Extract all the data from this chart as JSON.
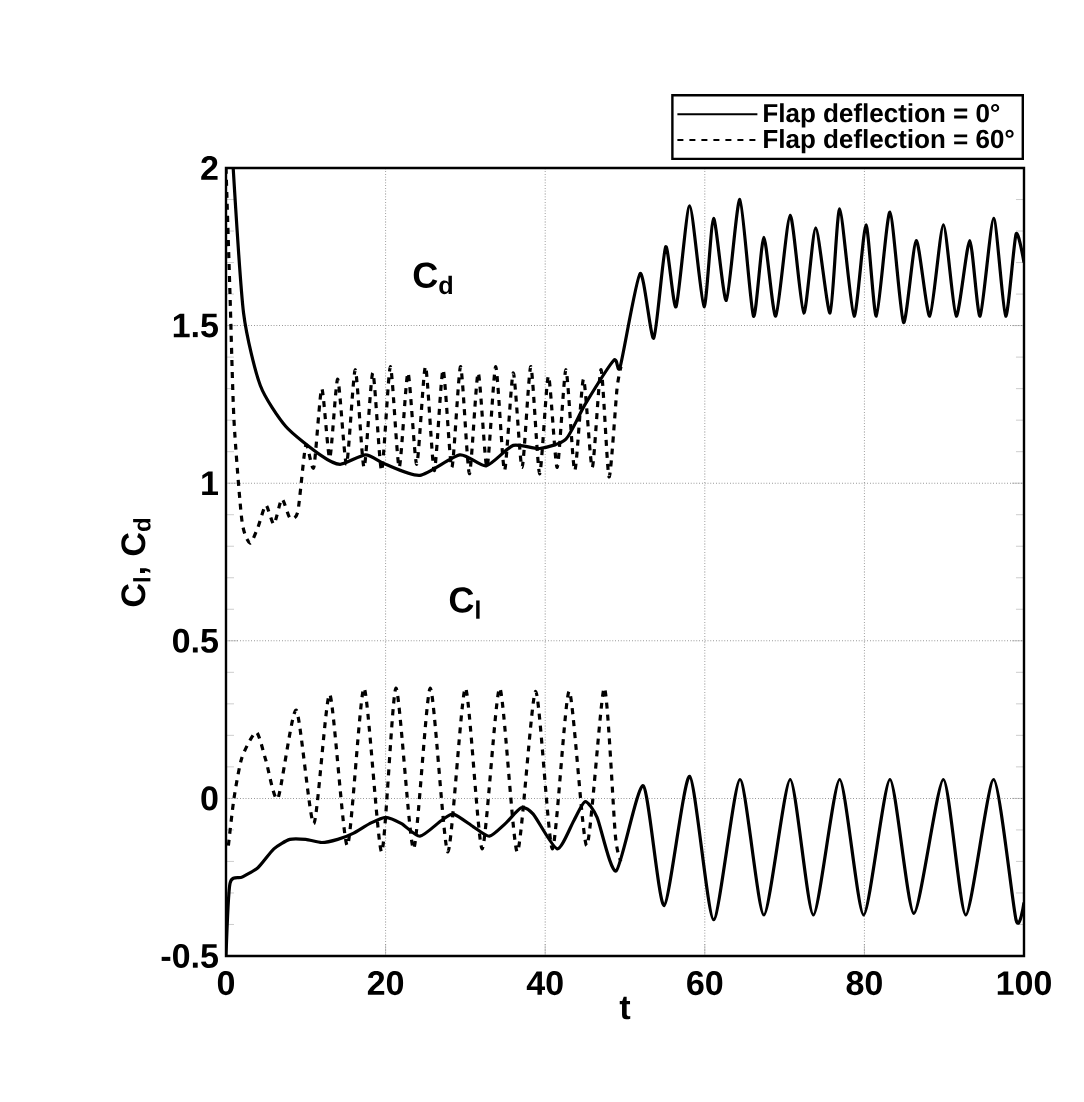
{
  "chart_data": {
    "type": "line",
    "xlabel": "t",
    "ylabel": "C$_{l}$, C$_{d}$",
    "xlim": [
      0,
      100
    ],
    "ylim": [
      -0.5,
      2
    ],
    "xticks": [
      0,
      20,
      40,
      60,
      80,
      100
    ],
    "yticks": [
      -0.5,
      0,
      0.5,
      1,
      1.5,
      2
    ],
    "grid": true,
    "legend": "top right",
    "marker": "none",
    "annotations": [
      "C$_{d}$",
      "C$_{l}$"
    ],
    "series": [
      {
        "name": "Flap deflection = 0°",
        "color": "#000000",
        "line_style": "solid",
        "x": [
          0.9,
          2.2,
          4.3,
          7.5,
          11.8,
          14.3,
          17.5,
          20,
          24.3,
          29.3,
          32.6,
          36,
          39.3,
          42.6,
          45,
          48.6,
          49.4,
          51.9,
          53.6,
          55.1,
          56.4,
          58.1,
          59.9,
          61.1,
          62.7,
          64.4,
          66.1,
          67.4,
          68.9,
          70.7,
          72.4,
          73.9,
          75.7,
          76.9,
          78.7,
          80.2,
          81.5,
          83.2,
          84.9,
          86.5,
          88.2,
          89.9,
          91.5,
          93.2,
          94.5,
          96.2,
          97.7,
          99,
          100
        ],
        "values": [
          2,
          1.54,
          1.31,
          1.18,
          1.09,
          1.06,
          1.09,
          1.06,
          1.025,
          1.09,
          1.055,
          1.12,
          1.11,
          1.14,
          1.25,
          1.39,
          1.37,
          1.665,
          1.46,
          1.75,
          1.56,
          1.88,
          1.56,
          1.84,
          1.58,
          1.9,
          1.53,
          1.78,
          1.53,
          1.85,
          1.54,
          1.81,
          1.54,
          1.87,
          1.53,
          1.82,
          1.53,
          1.86,
          1.51,
          1.77,
          1.53,
          1.82,
          1.53,
          1.77,
          1.53,
          1.84,
          1.53,
          1.79,
          1.7
        ]
      },
      {
        "name": "Flap deflection = 60°",
        "color": "#000000",
        "line_style": "dashed",
        "x": [
          0,
          0.5,
          1,
          2,
          3,
          4,
          5,
          6,
          7,
          8,
          9,
          10,
          11,
          12,
          13,
          14,
          15.1,
          16.2,
          17.3,
          18.4,
          19.5,
          20.6,
          21.7,
          22.8,
          23.9,
          25,
          26.1,
          27.2,
          28.3,
          29.4,
          30.5,
          31.6,
          32.7,
          33.8,
          34.9,
          36,
          37.1,
          38.2,
          39.3,
          40.4,
          41.5,
          42.6,
          43.7,
          44.8,
          45.9,
          47,
          48,
          49,
          49.5
        ],
        "values": [
          2,
          1.6,
          1.2,
          0.88,
          0.81,
          0.86,
          0.93,
          0.87,
          0.95,
          0.89,
          0.91,
          1.12,
          1.05,
          1.3,
          1.08,
          1.33,
          1.06,
          1.36,
          1.05,
          1.35,
          1.04,
          1.37,
          1.05,
          1.35,
          1.06,
          1.37,
          1.04,
          1.36,
          1.05,
          1.37,
          1.03,
          1.35,
          1.05,
          1.37,
          1.04,
          1.35,
          1.05,
          1.37,
          1.03,
          1.34,
          1.05,
          1.36,
          1.04,
          1.33,
          1.05,
          1.36,
          1.02,
          1.3,
          1.37
        ]
      },
      {
        "color": "#000000",
        "line_style": "solid",
        "x": [
          0,
          0.5,
          2,
          4,
          6,
          8,
          10,
          12,
          14,
          16,
          18,
          20,
          22,
          24.3,
          27,
          28.5,
          31,
          33,
          35,
          37,
          38.5,
          41.5,
          43.6,
          45,
          46.5,
          48.9,
          52.3,
          54.9,
          58.1,
          61.1,
          64.4,
          67.4,
          70.7,
          73.6,
          76.9,
          79.9,
          83.2,
          86.2,
          89.9,
          92.7,
          96.2,
          99,
          100
        ],
        "values": [
          -0.5,
          -0.27,
          -0.25,
          -0.22,
          -0.16,
          -0.13,
          -0.13,
          -0.14,
          -0.13,
          -0.11,
          -0.08,
          -0.06,
          -0.08,
          -0.12,
          -0.07,
          -0.05,
          -0.09,
          -0.12,
          -0.08,
          -0.03,
          -0.05,
          -0.16,
          -0.07,
          -0.01,
          -0.06,
          -0.23,
          0.04,
          -0.34,
          0.07,
          -0.385,
          0.06,
          -0.37,
          0.06,
          -0.37,
          0.06,
          -0.37,
          0.06,
          -0.365,
          0.06,
          -0.37,
          0.06,
          -0.385,
          -0.33
        ]
      },
      {
        "color": "#000000",
        "line_style": "dashed",
        "x": [
          0.3,
          1,
          2,
          3.8,
          5,
          6.5,
          8.8,
          11,
          13,
          15.2,
          17.3,
          19.5,
          21.3,
          23.5,
          25.6,
          27.8,
          30,
          32.1,
          34.3,
          36.5,
          38.8,
          40.9,
          43,
          45.2,
          47.4,
          48.8,
          49.5
        ],
        "values": [
          -0.15,
          0,
          0.13,
          0.21,
          0.12,
          0,
          0.28,
          -0.08,
          0.33,
          -0.15,
          0.35,
          -0.17,
          0.35,
          -0.16,
          0.35,
          -0.17,
          0.35,
          -0.16,
          0.35,
          -0.17,
          0.34,
          -0.16,
          0.34,
          -0.15,
          0.35,
          -0.12,
          -0.2
        ]
      }
    ]
  }
}
